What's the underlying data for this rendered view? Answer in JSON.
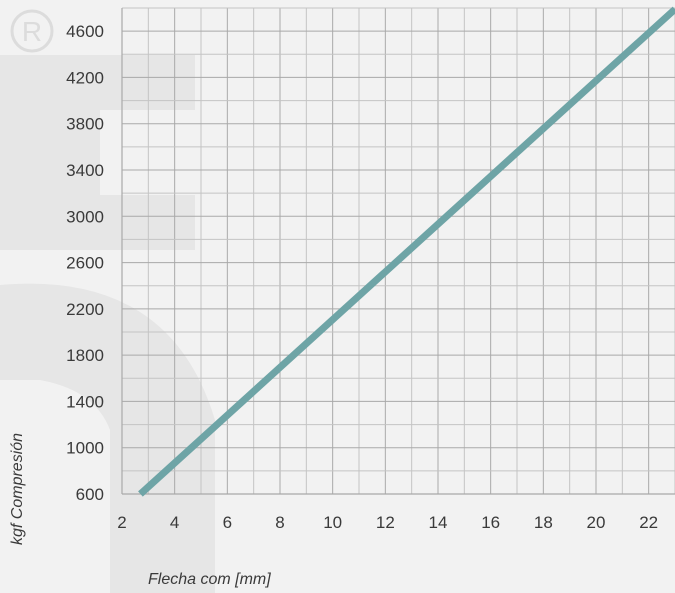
{
  "chart_data": {
    "type": "line",
    "xlabel": "Flecha com [mm]",
    "ylabel": "kgf Compresión",
    "xlim": [
      2,
      23
    ],
    "ylim": [
      600,
      4800
    ],
    "x_ticks": [
      "2",
      "4",
      "6",
      "8",
      "10",
      "12",
      "14",
      "16",
      "18",
      "20",
      "22"
    ],
    "y_ticks": [
      "600",
      "1000",
      "1400",
      "1800",
      "2200",
      "2600",
      "3000",
      "3400",
      "3800",
      "4200",
      "4600"
    ],
    "grid": true,
    "series": [
      {
        "x": [
          2.7,
          23
        ],
        "y": [
          600,
          4790
        ]
      }
    ],
    "colors": {
      "line": "#6ea4a6",
      "grid": "#a9a9a9",
      "minor_grid": "#c4c4c4",
      "background": "#f2f2f2",
      "watermark": "#e4e4e4"
    }
  },
  "watermark_logo": "registered-trademark-logo"
}
